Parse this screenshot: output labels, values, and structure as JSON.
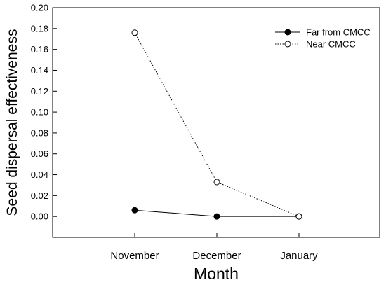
{
  "chart_data": {
    "type": "line",
    "title": "",
    "xlabel": "Month",
    "ylabel": "Seed dispersal effectiveness",
    "categories": [
      "November",
      "December",
      "January"
    ],
    "ylim": [
      -0.02,
      0.2
    ],
    "yticks": [
      "0.00",
      "0.02",
      "0.04",
      "0.06",
      "0.08",
      "0.10",
      "0.12",
      "0.14",
      "0.16",
      "0.18",
      "0.20"
    ],
    "grid": false,
    "legend_position": "top-right",
    "series": [
      {
        "name": "Far from CMCC",
        "values": [
          0.006,
          0.0,
          0.0
        ],
        "marker": "filled-circle",
        "line_style": "solid",
        "color": "#000000"
      },
      {
        "name": "Near CMCC",
        "values": [
          0.176,
          0.033,
          0.0
        ],
        "marker": "open-circle",
        "line_style": "dotted",
        "color": "#000000"
      }
    ]
  }
}
